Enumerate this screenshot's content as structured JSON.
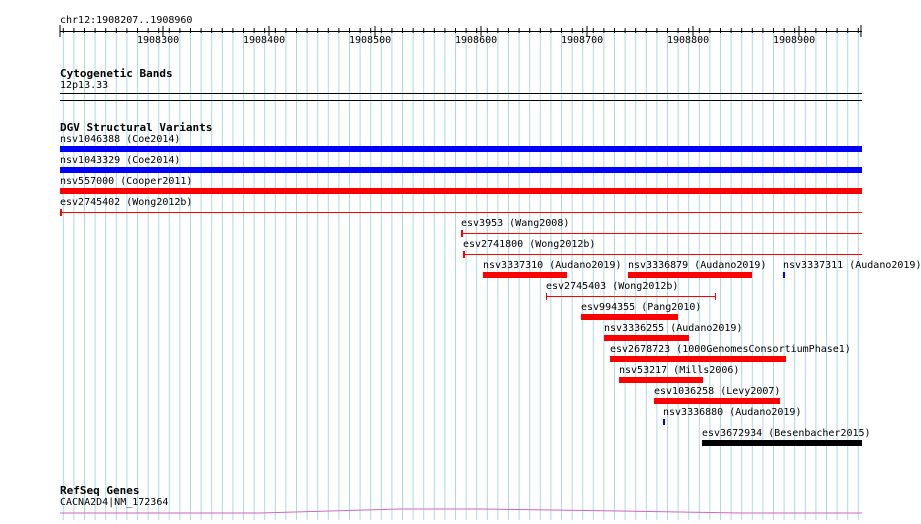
{
  "ruler": {
    "region_label": "chr12:1908207..1908960",
    "ticks": [
      "1908300",
      "1908400",
      "1908500",
      "1908600",
      "1908700",
      "1908800",
      "1908900"
    ]
  },
  "tracks": {
    "cytoband": {
      "title": "Cytogenetic Bands",
      "band_label": "12p13.33"
    },
    "dgv": {
      "title": "DGV Structural Variants",
      "features": [
        {
          "label": "nsv1046388 (Coe2014)",
          "color": "#0000ff",
          "style": "bar"
        },
        {
          "label": "nsv1043329 (Coe2014)",
          "color": "#0000ff",
          "style": "bar"
        },
        {
          "label": "nsv557000 (Cooper2011)",
          "color": "#ff0000",
          "style": "bar"
        },
        {
          "label": "esv2745402 (Wong2012b)",
          "color": "#ff0000",
          "style": "line"
        },
        {
          "label": "esv3953 (Wang2008)",
          "color": "#ff0000",
          "style": "line"
        },
        {
          "label": "esv2741800 (Wong2012b)",
          "color": "#ff0000",
          "style": "line"
        },
        {
          "label": "nsv3337310 (Audano2019)",
          "color": "#ff0000",
          "style": "bar"
        },
        {
          "label": "nsv3336879 (Audano2019)",
          "color": "#ff0000",
          "style": "bar"
        },
        {
          "label": "nsv3337311 (Audano2019)",
          "color": "#0000ff",
          "style": "tick"
        },
        {
          "label": "esv2745403 (Wong2012b)",
          "color": "#ff0000",
          "style": "bracket"
        },
        {
          "label": "esv994355 (Pang2010)",
          "color": "#ff0000",
          "style": "bar"
        },
        {
          "label": "nsv3336255 (Audano2019)",
          "color": "#ff0000",
          "style": "bar"
        },
        {
          "label": "esv2678723 (1000GenomesConsortiumPhase1)",
          "color": "#ff0000",
          "style": "bar"
        },
        {
          "label": "nsv53217 (Mills2006)",
          "color": "#ff0000",
          "style": "bar"
        },
        {
          "label": "esv1036258 (Levy2007)",
          "color": "#ff0000",
          "style": "bar"
        },
        {
          "label": "nsv3336880 (Audano2019)",
          "color": "#0000ff",
          "style": "tick"
        },
        {
          "label": "esv3672934 (Besenbacher2015)",
          "color": "#000000",
          "style": "bar"
        }
      ]
    },
    "refseq": {
      "title": "RefSeq Genes",
      "gene_label": "CACNA2D4|NM_172364",
      "color": "#cc66cc"
    }
  },
  "colors": {
    "gridline": "#add8e6",
    "sv_gain": "#0000ff",
    "sv_loss": "#ff0000",
    "sv_complex": "#000000",
    "gene": "#cc66cc"
  }
}
